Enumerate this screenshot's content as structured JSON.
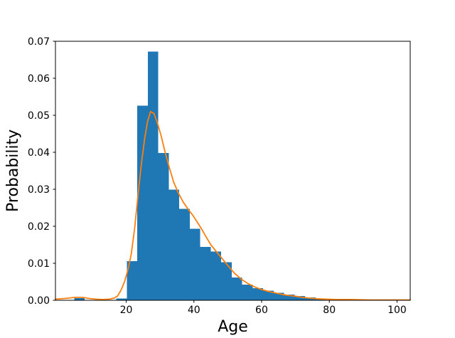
{
  "chart_data": {
    "type": "bar",
    "subtype": "histogram-with-kde-line",
    "title": "",
    "xlabel": "Age",
    "ylabel": "Probability",
    "xlim": [
      -0.9,
      103.9
    ],
    "ylim": [
      0,
      0.07
    ],
    "grid": false,
    "legend": "none",
    "bar_color": "#1f77b4",
    "line_color": "#ff7f0e",
    "spine_color": "#000000",
    "background_color": "#ffffff",
    "x_ticks": [
      {
        "value": 20,
        "label": "20"
      },
      {
        "value": 40,
        "label": "40"
      },
      {
        "value": 60,
        "label": "60"
      },
      {
        "value": 80,
        "label": "80"
      },
      {
        "value": 100,
        "label": "100"
      }
    ],
    "y_ticks": [
      {
        "value": 0.0,
        "label": "0.00"
      },
      {
        "value": 0.01,
        "label": "0.01"
      },
      {
        "value": 0.02,
        "label": "0.02"
      },
      {
        "value": 0.03,
        "label": "0.03"
      },
      {
        "value": 0.04,
        "label": "0.04"
      },
      {
        "value": 0.05,
        "label": "0.05"
      },
      {
        "value": 0.06,
        "label": "0.06"
      },
      {
        "value": 0.07,
        "label": "0.07"
      }
    ],
    "bars": [
      [
        4.66,
        7.76,
        0.0006
      ],
      [
        17.06,
        20.16,
        0.0005
      ],
      [
        20.16,
        23.26,
        0.0106
      ],
      [
        23.26,
        26.36,
        0.0526
      ],
      [
        26.36,
        29.46,
        0.0672
      ],
      [
        29.46,
        32.56,
        0.0398
      ],
      [
        32.56,
        35.66,
        0.0299
      ],
      [
        35.66,
        38.76,
        0.0247
      ],
      [
        38.76,
        41.86,
        0.0193
      ],
      [
        41.86,
        44.96,
        0.0144
      ],
      [
        44.96,
        48.06,
        0.0132
      ],
      [
        48.06,
        51.16,
        0.0103
      ],
      [
        51.16,
        54.26,
        0.0062
      ],
      [
        54.26,
        57.36,
        0.0042
      ],
      [
        57.36,
        60.46,
        0.0033
      ],
      [
        60.46,
        63.56,
        0.0026
      ],
      [
        63.56,
        66.66,
        0.002
      ],
      [
        66.66,
        69.76,
        0.0015
      ],
      [
        69.76,
        72.86,
        0.0012
      ],
      [
        72.86,
        75.96,
        0.0008
      ],
      [
        75.96,
        79.06,
        0.0004
      ]
    ],
    "kde": [
      [
        -0.9,
        0.0003
      ],
      [
        2,
        0.0005
      ],
      [
        5,
        0.0008
      ],
      [
        7,
        0.0008
      ],
      [
        9,
        0.0005
      ],
      [
        11,
        0.0003
      ],
      [
        13,
        0.0002
      ],
      [
        15,
        0.0003
      ],
      [
        16.5,
        0.0006
      ],
      [
        17.5,
        0.0012
      ],
      [
        18.5,
        0.0028
      ],
      [
        19.5,
        0.005
      ],
      [
        20.5,
        0.0082
      ],
      [
        21.5,
        0.0125
      ],
      [
        22.5,
        0.0195
      ],
      [
        23.5,
        0.0285
      ],
      [
        24.5,
        0.037
      ],
      [
        25.5,
        0.044
      ],
      [
        26.3,
        0.0483
      ],
      [
        27.2,
        0.051
      ],
      [
        28.2,
        0.0505
      ],
      [
        29.2,
        0.048
      ],
      [
        30.3,
        0.0445
      ],
      [
        31.5,
        0.04
      ],
      [
        32.7,
        0.036
      ],
      [
        34,
        0.032
      ],
      [
        35.3,
        0.0292
      ],
      [
        36.8,
        0.0266
      ],
      [
        38.3,
        0.0246
      ],
      [
        39.8,
        0.0228
      ],
      [
        41,
        0.0211
      ],
      [
        42.2,
        0.0194
      ],
      [
        43.5,
        0.0173
      ],
      [
        45,
        0.015
      ],
      [
        46.5,
        0.0133
      ],
      [
        48.4,
        0.0112
      ],
      [
        50,
        0.0094
      ],
      [
        52,
        0.0073
      ],
      [
        54,
        0.0057
      ],
      [
        56,
        0.0045
      ],
      [
        58,
        0.0036
      ],
      [
        60,
        0.0029
      ],
      [
        62,
        0.0024
      ],
      [
        64,
        0.002
      ],
      [
        66,
        0.0016
      ],
      [
        68,
        0.0013
      ],
      [
        70,
        0.0011
      ],
      [
        72,
        0.0008
      ],
      [
        74,
        0.0006
      ],
      [
        76.5,
        0.0004
      ],
      [
        79,
        0.0003
      ],
      [
        82,
        0.0002
      ],
      [
        86,
        0.0002
      ],
      [
        92,
        0.0001
      ],
      [
        98,
        0.0001
      ],
      [
        103.9,
        0.0001
      ]
    ]
  }
}
